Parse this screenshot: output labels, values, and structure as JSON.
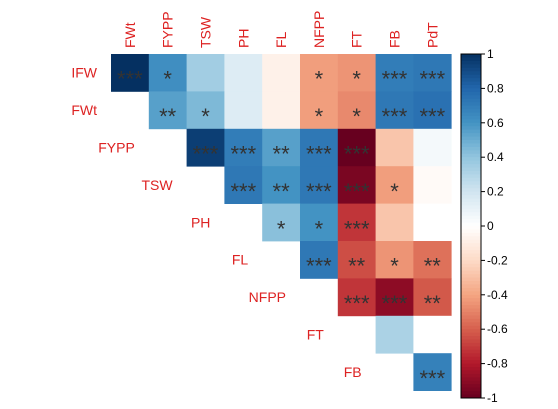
{
  "chart_data": {
    "type": "heatmap",
    "variant": "correlation-matrix-upper",
    "variables": [
      "IFW",
      "FWt",
      "FYPP",
      "TSW",
      "PH",
      "FL",
      "NFPP",
      "FT",
      "FB",
      "PdT"
    ],
    "col_labels": [
      "FWt",
      "FYPP",
      "TSW",
      "PH",
      "FL",
      "NFPP",
      "FT",
      "FB",
      "PdT"
    ],
    "row_labels": [
      "IFW",
      "FWt",
      "FYPP",
      "TSW",
      "PH",
      "FL",
      "NFPP",
      "FT",
      "FB"
    ],
    "matrix": [
      [
        1.0,
        0.62,
        0.35,
        0.15,
        -0.08,
        -0.42,
        -0.45,
        0.7,
        0.72
      ],
      [
        null,
        0.55,
        0.45,
        0.15,
        -0.08,
        -0.42,
        -0.48,
        0.72,
        0.75
      ],
      [
        null,
        null,
        0.95,
        0.7,
        0.55,
        0.72,
        -1.0,
        -0.28,
        0.05
      ],
      [
        null,
        null,
        null,
        0.72,
        0.6,
        0.72,
        -0.95,
        -0.42,
        -0.03
      ],
      [
        null,
        null,
        null,
        null,
        0.42,
        0.6,
        -0.72,
        -0.28,
        0.0
      ],
      [
        null,
        null,
        null,
        null,
        null,
        0.72,
        -0.65,
        -0.45,
        -0.55
      ],
      [
        null,
        null,
        null,
        null,
        null,
        null,
        -0.72,
        -0.9,
        -0.62
      ],
      [
        null,
        null,
        null,
        null,
        null,
        null,
        null,
        0.32,
        0.0
      ],
      [
        null,
        null,
        null,
        null,
        null,
        null,
        null,
        null,
        0.68
      ]
    ],
    "significance": [
      [
        "***",
        "*",
        "",
        "",
        "",
        "*",
        "*",
        "***",
        "***"
      ],
      [
        null,
        "**",
        "*",
        "",
        "",
        "*",
        "*",
        "***",
        "***"
      ],
      [
        null,
        null,
        "***",
        "***",
        "**",
        "***",
        "***",
        "",
        ""
      ],
      [
        null,
        null,
        null,
        "***",
        "**",
        "***",
        "***",
        "*",
        ""
      ],
      [
        null,
        null,
        null,
        null,
        "*",
        "*",
        "***",
        "",
        ""
      ],
      [
        null,
        null,
        null,
        null,
        null,
        "***",
        "**",
        "*",
        "**"
      ],
      [
        null,
        null,
        null,
        null,
        null,
        null,
        "***",
        "***",
        "**"
      ],
      [
        null,
        null,
        null,
        null,
        null,
        null,
        null,
        "",
        ""
      ],
      [
        null,
        null,
        null,
        null,
        null,
        null,
        null,
        null,
        "***"
      ]
    ],
    "color_scale": {
      "ticks": [
        "1",
        "0.8",
        "0.6",
        "0.4",
        "0.2",
        "0",
        "-0.2",
        "-0.4",
        "-0.6",
        "-0.8",
        "-1"
      ],
      "range": [
        -1,
        1
      ],
      "colors": [
        "#67001F",
        "#B2182B",
        "#D6604D",
        "#F4A582",
        "#FDDBC7",
        "#FFFFFF",
        "#D1E5F0",
        "#92C5DE",
        "#4393C3",
        "#2166AC",
        "#053061"
      ]
    },
    "label_color": "#DD2222",
    "significance_color": "#333333",
    "grid": false,
    "legend_position": "right"
  }
}
